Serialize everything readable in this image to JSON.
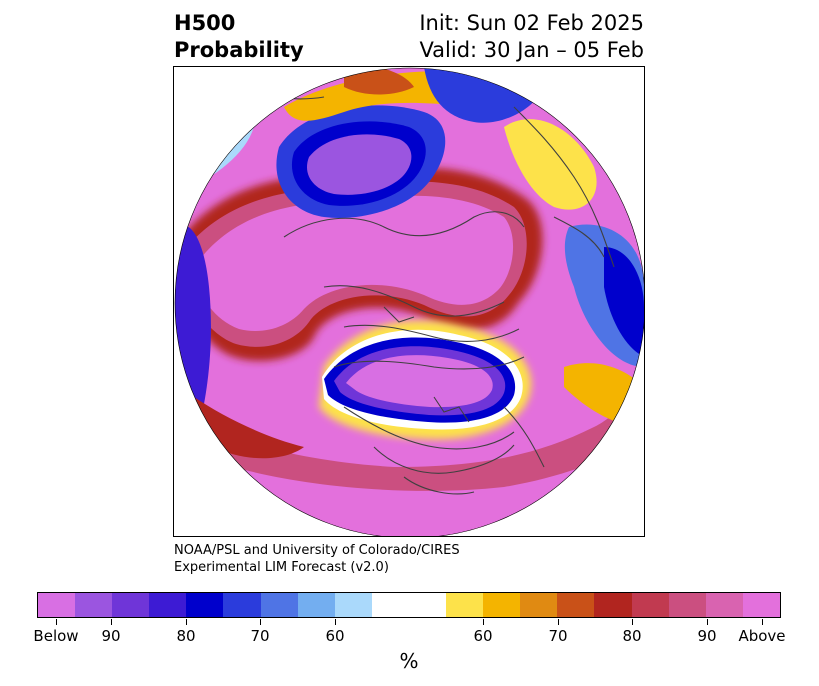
{
  "title": {
    "line1": "H500",
    "line2": "Probability",
    "init": "Init: Sun 02 Feb 2025",
    "valid": "Valid: 30 Jan – 05 Feb"
  },
  "credit": {
    "line1": "NOAA/PSL and University of Colorado/CIRES",
    "line2": "Experimental LIM Forecast (v2.0)"
  },
  "colorbar": {
    "unit": "%",
    "colors": [
      "#d86fe3",
      "#9b55e0",
      "#6f35d8",
      "#3d1bd4",
      "#0000cc",
      "#2b3cdc",
      "#4f74e5",
      "#73aef0",
      "#aad9fb",
      "#ffffff",
      "#ffffff",
      "#fde24a",
      "#f4b400",
      "#e08a12",
      "#c95118",
      "#b1251f",
      "#c13a50",
      "#cb4f80",
      "#d963b0",
      "#e370dc"
    ],
    "tick_labels": [
      "Below",
      "90",
      "80",
      "70",
      "60",
      "60",
      "70",
      "80",
      "90",
      "Above"
    ]
  },
  "map": {
    "projection": "north-polar-stereographic",
    "field": "500-hPa height probability",
    "background_color": "#ffffff",
    "coastline_color": "#404040"
  }
}
